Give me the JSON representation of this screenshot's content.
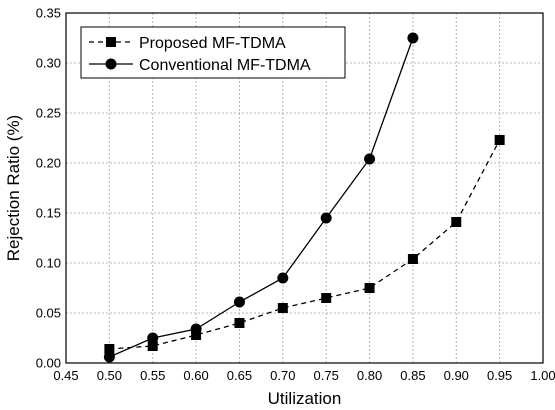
{
  "chart_data": {
    "type": "line",
    "title": "",
    "xlabel": "Utilization",
    "ylabel": "Rejection Ratio (%)",
    "xlim": [
      0.45,
      1.0
    ],
    "ylim": [
      0.0,
      0.35
    ],
    "x_ticks": [
      "0.45",
      "0.50",
      "0.55",
      "0.60",
      "0.65",
      "0.70",
      "0.75",
      "0.80",
      "0.85",
      "0.90",
      "0.95",
      "1.00"
    ],
    "y_ticks": [
      "0.00",
      "0.05",
      "0.10",
      "0.15",
      "0.20",
      "0.25",
      "0.30",
      "0.35"
    ],
    "grid": true,
    "legend_position": "top-left",
    "series": [
      {
        "name": "Proposed MF-TDMA",
        "line_style": "dashed",
        "marker": "square",
        "color": "#000000",
        "x": [
          0.5,
          0.55,
          0.6,
          0.65,
          0.7,
          0.75,
          0.8,
          0.85,
          0.9,
          0.95
        ],
        "y": [
          0.014,
          0.017,
          0.028,
          0.04,
          0.055,
          0.065,
          0.075,
          0.104,
          0.141,
          0.223
        ]
      },
      {
        "name": "Conventional MF-TDMA",
        "line_style": "solid",
        "marker": "circle",
        "color": "#000000",
        "x": [
          0.5,
          0.55,
          0.6,
          0.65,
          0.7,
          0.75,
          0.8,
          0.85
        ],
        "y": [
          0.006,
          0.025,
          0.034,
          0.061,
          0.085,
          0.145,
          0.204,
          0.325
        ]
      }
    ]
  }
}
